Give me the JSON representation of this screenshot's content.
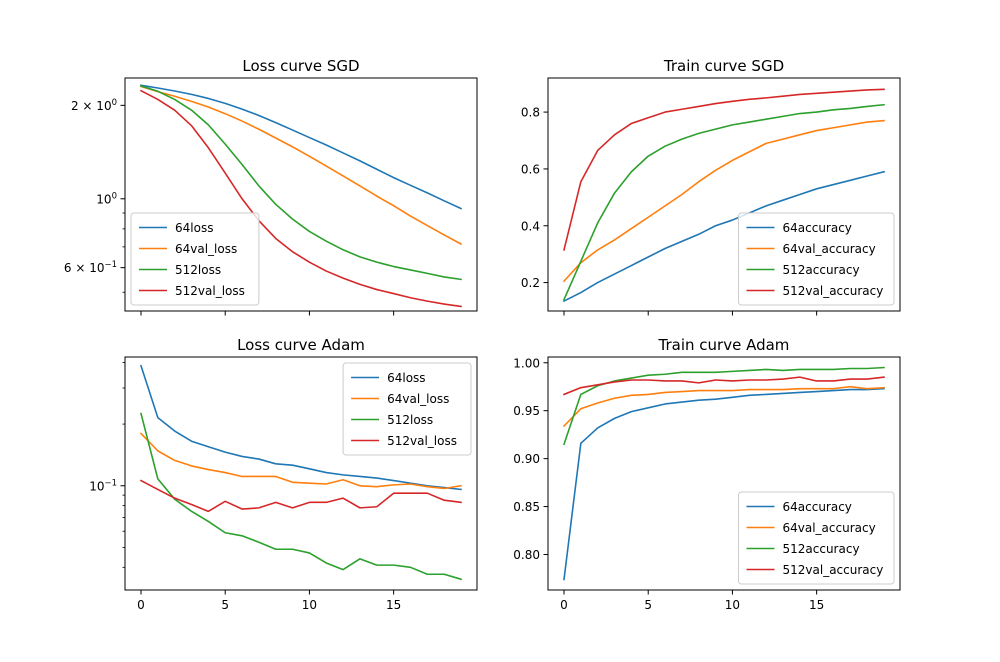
{
  "colors": {
    "blue": "#1f77b4",
    "orange": "#ff7f0e",
    "green": "#2ca02c",
    "red": "#d62728"
  },
  "chart_data": [
    {
      "type": "line",
      "title": "Loss curve SGD",
      "xlabel": "",
      "ylabel": "",
      "yscale": "log",
      "xlim": [
        -0.95,
        19.95
      ],
      "ylim": [
        0.435,
        2.45
      ],
      "xticks": [
        0,
        5,
        10,
        15
      ],
      "show_xtick_labels": false,
      "yticks": [
        {
          "value": 2.0,
          "label": "2 × 10⁰",
          "kind": "sci",
          "mantissa": "2",
          "base": "10",
          "exp": "0"
        },
        {
          "value": 1.0,
          "label": "10⁰",
          "kind": "pow",
          "base": "10",
          "exp": "0"
        },
        {
          "value": 0.6,
          "label": "6 × 10⁻¹",
          "kind": "sci",
          "mantissa": "6",
          "base": "10",
          "exp": "−1"
        }
      ],
      "minor_ticks": [
        0.5,
        0.7,
        0.8,
        0.9
      ],
      "grid": false,
      "legend": "lower-left",
      "series": [
        {
          "name": "64loss",
          "color": "blue",
          "values": [
            2.32,
            2.275,
            2.225,
            2.17,
            2.105,
            2.03,
            1.945,
            1.855,
            1.76,
            1.665,
            1.575,
            1.49,
            1.405,
            1.325,
            1.245,
            1.17,
            1.105,
            1.045,
            0.985,
            0.93
          ]
        },
        {
          "name": "64val_loss",
          "color": "orange",
          "values": [
            2.3,
            2.215,
            2.14,
            2.06,
            1.975,
            1.88,
            1.78,
            1.675,
            1.57,
            1.47,
            1.37,
            1.275,
            1.185,
            1.1,
            1.02,
            0.95,
            0.88,
            0.82,
            0.765,
            0.715
          ]
        },
        {
          "name": "512loss",
          "color": "green",
          "values": [
            2.31,
            2.22,
            2.09,
            1.93,
            1.73,
            1.5,
            1.29,
            1.1,
            0.96,
            0.86,
            0.785,
            0.73,
            0.685,
            0.65,
            0.625,
            0.605,
            0.59,
            0.575,
            0.56,
            0.55
          ]
        },
        {
          "name": "512val_loss",
          "color": "red",
          "values": [
            2.23,
            2.09,
            1.93,
            1.72,
            1.46,
            1.21,
            1.0,
            0.85,
            0.745,
            0.675,
            0.625,
            0.585,
            0.555,
            0.53,
            0.51,
            0.495,
            0.48,
            0.468,
            0.458,
            0.45
          ]
        }
      ]
    },
    {
      "type": "line",
      "title": "Train curve SGD",
      "xlabel": "",
      "ylabel": "",
      "yscale": "linear",
      "xlim": [
        -0.95,
        19.95
      ],
      "ylim": [
        0.1,
        0.92
      ],
      "xticks": [
        0,
        5,
        10,
        15
      ],
      "show_xtick_labels": false,
      "yticks": [
        {
          "value": 0.2,
          "label": "0.2",
          "kind": "plain"
        },
        {
          "value": 0.4,
          "label": "0.4",
          "kind": "plain"
        },
        {
          "value": 0.6,
          "label": "0.6",
          "kind": "plain"
        },
        {
          "value": 0.8,
          "label": "0.8",
          "kind": "plain"
        }
      ],
      "grid": false,
      "legend": "lower-right",
      "series": [
        {
          "name": "64accuracy",
          "color": "blue",
          "values": [
            0.135,
            0.165,
            0.2,
            0.23,
            0.26,
            0.29,
            0.32,
            0.345,
            0.37,
            0.4,
            0.42,
            0.445,
            0.47,
            0.49,
            0.51,
            0.53,
            0.545,
            0.56,
            0.575,
            0.59
          ]
        },
        {
          "name": "64val_accuracy",
          "color": "orange",
          "values": [
            0.205,
            0.27,
            0.315,
            0.35,
            0.39,
            0.43,
            0.47,
            0.51,
            0.555,
            0.595,
            0.63,
            0.66,
            0.69,
            0.705,
            0.72,
            0.735,
            0.745,
            0.755,
            0.765,
            0.77
          ]
        },
        {
          "name": "512accuracy",
          "color": "green",
          "values": [
            0.14,
            0.275,
            0.41,
            0.515,
            0.59,
            0.645,
            0.68,
            0.705,
            0.725,
            0.74,
            0.755,
            0.765,
            0.775,
            0.785,
            0.795,
            0.8,
            0.808,
            0.813,
            0.82,
            0.826
          ]
        },
        {
          "name": "512val_accuracy",
          "color": "red",
          "values": [
            0.315,
            0.555,
            0.665,
            0.72,
            0.76,
            0.78,
            0.8,
            0.81,
            0.82,
            0.83,
            0.838,
            0.845,
            0.85,
            0.856,
            0.862,
            0.866,
            0.87,
            0.874,
            0.878,
            0.88
          ]
        }
      ]
    },
    {
      "type": "line",
      "title": "Loss curve Adam",
      "xlabel": "",
      "ylabel": "",
      "yscale": "log",
      "xlim": [
        -0.95,
        19.95
      ],
      "ylim": [
        0.031,
        0.425
      ],
      "xticks": [
        0,
        5,
        10,
        15
      ],
      "show_xtick_labels": true,
      "yticks": [
        {
          "value": 0.1,
          "label": "10⁻¹",
          "kind": "pow",
          "base": "10",
          "exp": "−1"
        }
      ],
      "minor_ticks": [
        0.04,
        0.05,
        0.06,
        0.07,
        0.08,
        0.09,
        0.2,
        0.3,
        0.4
      ],
      "grid": false,
      "legend": "upper-right",
      "series": [
        {
          "name": "64loss",
          "color": "blue",
          "values": [
            0.385,
            0.215,
            0.185,
            0.165,
            0.155,
            0.146,
            0.139,
            0.135,
            0.128,
            0.126,
            0.121,
            0.116,
            0.113,
            0.111,
            0.109,
            0.106,
            0.103,
            0.1,
            0.098,
            0.096
          ]
        },
        {
          "name": "64val_loss",
          "color": "orange",
          "values": [
            0.18,
            0.148,
            0.133,
            0.125,
            0.12,
            0.116,
            0.111,
            0.111,
            0.111,
            0.104,
            0.103,
            0.102,
            0.107,
            0.1,
            0.099,
            0.101,
            0.102,
            0.099,
            0.097,
            0.1
          ]
        },
        {
          "name": "512loss",
          "color": "green",
          "values": [
            0.225,
            0.108,
            0.086,
            0.075,
            0.067,
            0.059,
            0.057,
            0.053,
            0.049,
            0.049,
            0.047,
            0.042,
            0.039,
            0.044,
            0.041,
            0.041,
            0.04,
            0.037,
            0.037,
            0.035
          ]
        },
        {
          "name": "512val_loss",
          "color": "red",
          "values": [
            0.106,
            0.096,
            0.087,
            0.081,
            0.075,
            0.084,
            0.077,
            0.078,
            0.083,
            0.078,
            0.083,
            0.083,
            0.087,
            0.078,
            0.079,
            0.092,
            0.092,
            0.092,
            0.085,
            0.083
          ]
        }
      ]
    },
    {
      "type": "line",
      "title": "Train curve Adam",
      "xlabel": "",
      "ylabel": "",
      "yscale": "linear",
      "xlim": [
        -0.95,
        19.95
      ],
      "ylim": [
        0.763,
        1.006
      ],
      "xticks": [
        0,
        5,
        10,
        15
      ],
      "show_xtick_labels": true,
      "yticks": [
        {
          "value": 0.8,
          "label": "0.80",
          "kind": "plain"
        },
        {
          "value": 0.85,
          "label": "0.85",
          "kind": "plain"
        },
        {
          "value": 0.9,
          "label": "0.90",
          "kind": "plain"
        },
        {
          "value": 0.95,
          "label": "0.95",
          "kind": "plain"
        },
        {
          "value": 1.0,
          "label": "1.00",
          "kind": "plain"
        }
      ],
      "grid": false,
      "legend": "lower-right",
      "series": [
        {
          "name": "64accuracy",
          "color": "blue",
          "values": [
            0.774,
            0.916,
            0.932,
            0.942,
            0.949,
            0.953,
            0.957,
            0.959,
            0.961,
            0.962,
            0.964,
            0.966,
            0.967,
            0.968,
            0.969,
            0.97,
            0.971,
            0.972,
            0.972,
            0.973
          ]
        },
        {
          "name": "64val_accuracy",
          "color": "orange",
          "values": [
            0.934,
            0.952,
            0.958,
            0.963,
            0.966,
            0.967,
            0.969,
            0.97,
            0.971,
            0.971,
            0.971,
            0.972,
            0.972,
            0.972,
            0.973,
            0.973,
            0.973,
            0.975,
            0.973,
            0.974
          ]
        },
        {
          "name": "512accuracy",
          "color": "green",
          "values": [
            0.915,
            0.967,
            0.976,
            0.981,
            0.984,
            0.987,
            0.988,
            0.99,
            0.99,
            0.99,
            0.991,
            0.992,
            0.993,
            0.992,
            0.993,
            0.993,
            0.993,
            0.994,
            0.994,
            0.995
          ]
        },
        {
          "name": "512val_accuracy",
          "color": "red",
          "values": [
            0.967,
            0.974,
            0.977,
            0.98,
            0.982,
            0.982,
            0.981,
            0.981,
            0.979,
            0.982,
            0.981,
            0.982,
            0.982,
            0.983,
            0.985,
            0.981,
            0.981,
            0.983,
            0.983,
            0.985
          ]
        }
      ]
    }
  ]
}
